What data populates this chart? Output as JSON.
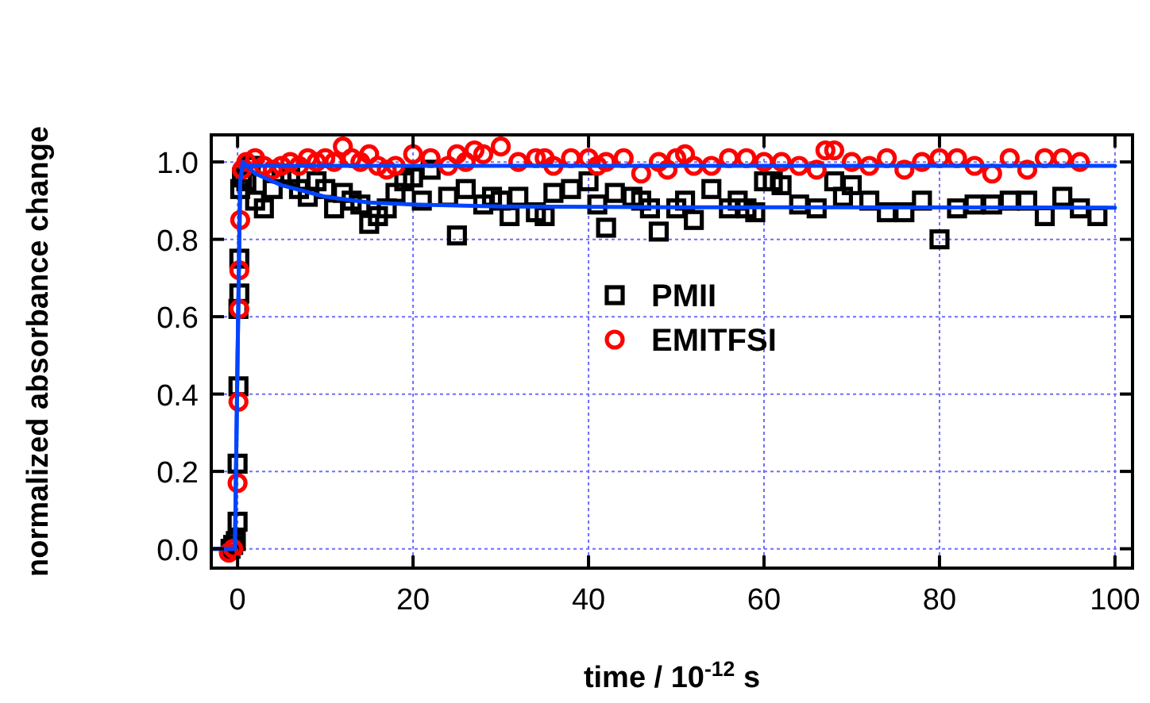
{
  "chart_data": {
    "type": "scatter",
    "xlabel": "time / 10$^{-12}$ s",
    "ylabel": "normalized absorbance change",
    "xlim": [
      -3,
      102
    ],
    "ylim": [
      -0.05,
      1.07
    ],
    "xticks": [
      0,
      20,
      40,
      60,
      80,
      100
    ],
    "yticks": [
      {
        "value": 0,
        "label": "0.0"
      },
      {
        "value": 0.2,
        "label": "0.2"
      },
      {
        "value": 0.4,
        "label": "0.4"
      },
      {
        "value": 0.6,
        "label": "0.6"
      },
      {
        "value": 0.8,
        "label": "0.8"
      },
      {
        "value": 1,
        "label": "1.0"
      }
    ],
    "grid": true,
    "legend": "center",
    "line_style": "solid",
    "series": [
      {
        "name": "PMII",
        "marker": "square",
        "color": "#000000",
        "x": [
          -0.8,
          -0.5,
          -0.2,
          0,
          0,
          0.1,
          0.1,
          0.2,
          0.2,
          0.3,
          0.5,
          1,
          1.5,
          2,
          3,
          4,
          5,
          6,
          7,
          8,
          9,
          10,
          11,
          12,
          13,
          14,
          15,
          16,
          17,
          18,
          19,
          20,
          21,
          22,
          24,
          25,
          26,
          28,
          29,
          30,
          31,
          32,
          34,
          35,
          36,
          38,
          40,
          41,
          42,
          43,
          45,
          46,
          47,
          48,
          50,
          51,
          52,
          54,
          56,
          57,
          58,
          59,
          60,
          61,
          62,
          64,
          66,
          68,
          69,
          70,
          72,
          74,
          76,
          78,
          80,
          82,
          84,
          86,
          88,
          90,
          92,
          94,
          96,
          98
        ],
        "values": [
          0,
          0.01,
          0.02,
          0.07,
          0.22,
          0.42,
          0.62,
          0.66,
          0.75,
          0.93,
          0.96,
          0.95,
          0.99,
          0.9,
          0.88,
          0.93,
          0.97,
          0.96,
          0.93,
          0.91,
          0.95,
          0.93,
          0.88,
          0.92,
          0.9,
          0.89,
          0.84,
          0.86,
          0.88,
          0.92,
          0.95,
          0.96,
          0.9,
          0.98,
          0.91,
          0.81,
          0.93,
          0.89,
          0.91,
          0.9,
          0.86,
          0.91,
          0.87,
          0.86,
          0.92,
          0.93,
          0.95,
          0.89,
          0.83,
          0.92,
          0.91,
          0.9,
          0.88,
          0.82,
          0.88,
          0.9,
          0.85,
          0.93,
          0.88,
          0.9,
          0.88,
          0.87,
          0.95,
          0.95,
          0.94,
          0.89,
          0.88,
          0.95,
          0.91,
          0.94,
          0.9,
          0.87,
          0.87,
          0.9,
          0.8,
          0.88,
          0.89,
          0.89,
          0.9,
          0.9,
          0.86,
          0.91,
          0.88,
          0.86
        ]
      },
      {
        "name": "EMITFSI",
        "marker": "circle",
        "color": "#ff0000",
        "x": [
          -1,
          -0.5,
          0,
          0.1,
          0.2,
          0.2,
          0.3,
          0.5,
          1,
          2,
          3,
          4,
          5,
          6,
          7,
          8,
          9,
          10,
          11,
          12,
          13,
          14,
          15,
          16,
          17,
          18,
          20,
          22,
          24,
          25,
          26,
          27,
          28,
          30,
          32,
          34,
          35,
          36,
          38,
          40,
          41,
          42,
          44,
          46,
          48,
          49,
          50,
          51,
          52,
          54,
          56,
          58,
          60,
          62,
          64,
          66,
          67,
          68,
          70,
          72,
          74,
          76,
          78,
          80,
          82,
          84,
          86,
          88,
          90,
          92,
          94,
          96
        ],
        "values": [
          -0.01,
          0,
          0.17,
          0.38,
          0.62,
          0.72,
          0.85,
          0.98,
          1,
          1.01,
          0.99,
          0.98,
          0.99,
          1,
          0.99,
          1.01,
          1,
          1.01,
          1,
          1.04,
          1.01,
          1,
          1.02,
          0.99,
          0.98,
          0.99,
          1.02,
          1.01,
          0.99,
          1.02,
          1,
          1.03,
          1.02,
          1.04,
          1,
          1.01,
          1.01,
          0.99,
          1.01,
          1.01,
          0.99,
          1,
          1.01,
          0.97,
          1,
          0.98,
          1.01,
          1.02,
          0.99,
          0.99,
          1.01,
          1.01,
          1,
          1,
          0.99,
          0.98,
          1.03,
          1.03,
          1,
          0.99,
          1.01,
          0.98,
          1,
          1.01,
          1.01,
          0.99,
          0.97,
          1.01,
          0.98,
          1.01,
          1.01,
          1
        ]
      },
      {
        "type": "line",
        "marker": "none",
        "color": "#0044ff",
        "x": [
          -3,
          -0.3,
          0,
          0.3,
          0.6,
          2,
          5,
          10,
          15,
          20,
          30,
          50,
          100
        ],
        "values": [
          0,
          0,
          0.5,
          0.95,
          1,
          0.97,
          0.94,
          0.91,
          0.895,
          0.89,
          0.885,
          0.883,
          0.882
        ]
      },
      {
        "type": "line",
        "marker": "none",
        "color": "#0044ff",
        "x": [
          -3,
          -0.3,
          0,
          0.3,
          0.6,
          100
        ],
        "values": [
          0,
          0,
          0.5,
          0.95,
          0.99,
          0.99
        ]
      }
    ]
  }
}
